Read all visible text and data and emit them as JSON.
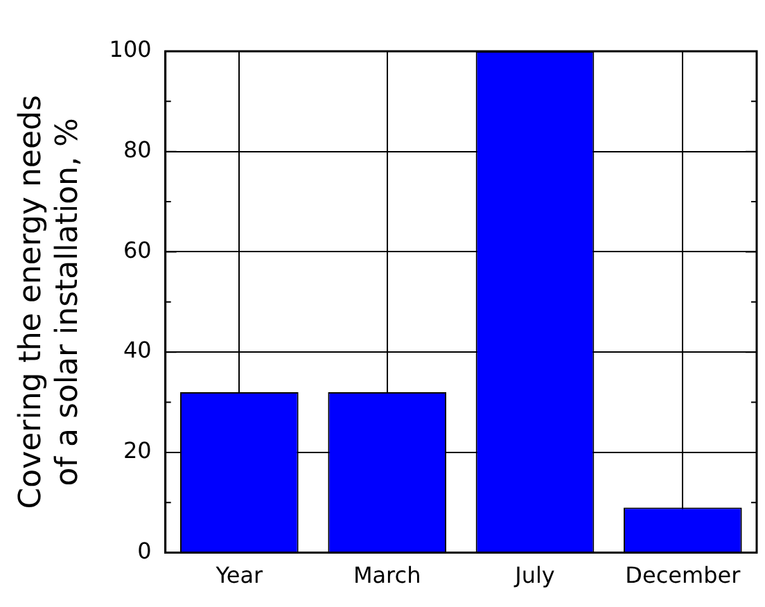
{
  "chart_data": {
    "type": "bar",
    "ylabel": "Covering the energy needs\nof a solar installation, %",
    "categories": [
      "Year",
      "March",
      "July",
      "December"
    ],
    "values": [
      32,
      32,
      100,
      9
    ],
    "color": "#0000ff",
    "ylim": [
      0,
      100
    ],
    "yticks": [
      0,
      20,
      40,
      60,
      80,
      100
    ],
    "grid": true,
    "legend": false
  }
}
